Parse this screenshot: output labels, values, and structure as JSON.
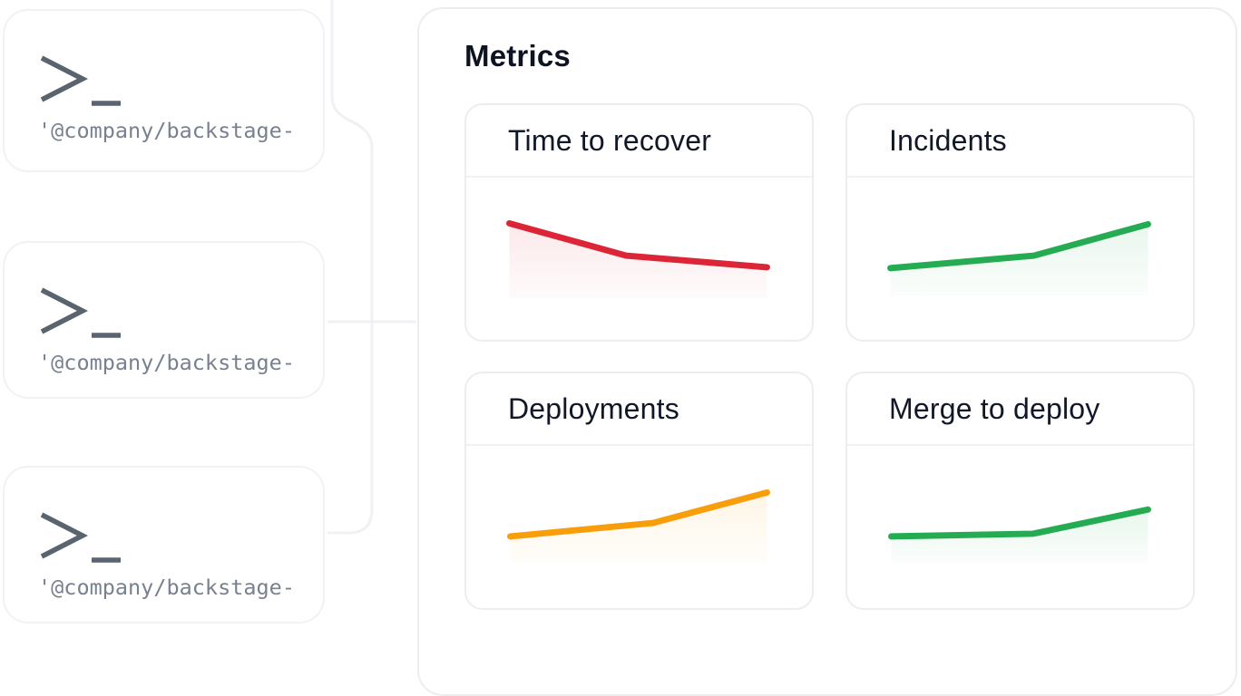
{
  "page": {
    "background": "#ffffff"
  },
  "terminal_cards": [
    {
      "icon": "terminal-prompt-icon",
      "command": "'@company/backstage-"
    },
    {
      "icon": "terminal-prompt-icon",
      "command": "'@company/backstage-"
    },
    {
      "icon": "terminal-prompt-icon",
      "command": "'@company/backstage-"
    }
  ],
  "metrics_panel": {
    "title": "Metrics",
    "cards": [
      {
        "title": "Time to recover",
        "trend": "down",
        "color": "#dc2637",
        "chart": {
          "points": [
            [
              48,
              51
            ],
            [
              178,
              87
            ],
            [
              335,
              100
            ]
          ],
          "base": 134
        }
      },
      {
        "title": "Incidents",
        "trend": "up",
        "color": "#25ac53",
        "chart": {
          "points": [
            [
              48,
              101
            ],
            [
              208,
              87
            ],
            [
              335,
              52
            ]
          ],
          "base": 133
        }
      },
      {
        "title": "Deployments",
        "trend": "up",
        "color": "#f99e0b",
        "chart": {
          "points": [
            [
              49,
              101
            ],
            [
              208,
              86
            ],
            [
              335,
              52
            ]
          ],
          "base": 130
        }
      },
      {
        "title": "Merge to deploy",
        "trend": "up",
        "color": "#25ac53",
        "chart": {
          "points": [
            [
              49,
              101
            ],
            [
              207,
              98
            ],
            [
              335,
              71
            ]
          ],
          "base": 130
        }
      }
    ]
  },
  "chart_data": [
    {
      "type": "line",
      "title": "Time to recover",
      "trend": "down",
      "color": "#dc2637",
      "x_relative": [
        0,
        45,
        100
      ],
      "values_relative": [
        100,
        56,
        40
      ],
      "axes_shown": false,
      "grid": false,
      "legend": "none",
      "area_fill": true
    },
    {
      "type": "line",
      "title": "Incidents",
      "trend": "up",
      "color": "#25ac53",
      "x_relative": [
        0,
        56,
        100
      ],
      "values_relative": [
        39,
        56,
        99
      ],
      "axes_shown": false,
      "grid": false,
      "legend": "none",
      "area_fill": true
    },
    {
      "type": "line",
      "title": "Deployments",
      "trend": "up",
      "color": "#f99e0b",
      "x_relative": [
        0,
        56,
        100
      ],
      "values_relative": [
        39,
        57,
        98
      ],
      "axes_shown": false,
      "grid": false,
      "legend": "none",
      "area_fill": true
    },
    {
      "type": "line",
      "title": "Merge to deploy",
      "trend": "up",
      "color": "#25ac53",
      "x_relative": [
        0,
        55,
        100
      ],
      "values_relative": [
        40,
        44,
        76
      ],
      "axes_shown": false,
      "grid": false,
      "legend": "none",
      "area_fill": true
    }
  ]
}
